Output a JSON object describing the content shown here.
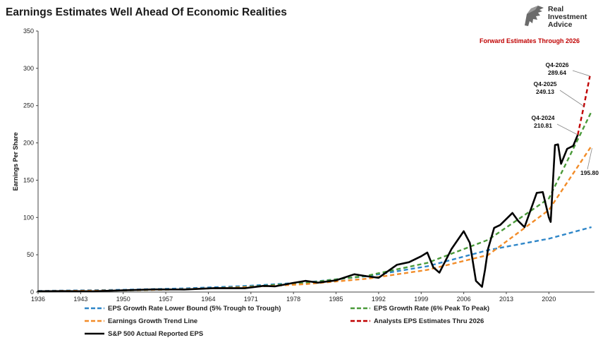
{
  "header": {
    "title": "Earnings Estimates Well Ahead Of Economic Realities",
    "logo_lines": [
      "Real",
      "Investment",
      "Advice"
    ]
  },
  "chart_data": {
    "type": "line",
    "title": "Earnings Estimates Well Ahead Of Economic Realities",
    "ylabel": "Earnings Per Share",
    "xlabel": "",
    "xlim": [
      1936,
      2027.5
    ],
    "ylim": [
      0,
      350
    ],
    "x_ticks": [
      "1936",
      "1943",
      "1950",
      "1957",
      "1964",
      "1971",
      "1978",
      "1985",
      "1992",
      "1999",
      "2006",
      "2013",
      "2020"
    ],
    "y_ticks": [
      "0",
      "50",
      "100",
      "150",
      "200",
      "250",
      "300",
      "350"
    ],
    "grid": false,
    "legend_position": "bottom",
    "series": [
      {
        "name": "EPS Growth Rate Lower Bound (5% Trough to Trough)",
        "color": "#2e86c8",
        "dash": "dashed",
        "x": [
          1936,
          1950,
          1960,
          1970,
          1980,
          1990,
          2000,
          2010,
          2020,
          2027
        ],
        "y": [
          1.5,
          3.0,
          4.9,
          8.0,
          13.0,
          21.2,
          34.5,
          56.2,
          71.5,
          87.0
        ]
      },
      {
        "name": "EPS Growth Rate (6% Peak To Peak)",
        "color": "#4a9a3a",
        "dash": "dashed",
        "x": [
          1936,
          1950,
          1960,
          1970,
          1980,
          1990,
          2000,
          2010,
          2020,
          2027
        ],
        "y": [
          0.9,
          2.1,
          3.8,
          6.8,
          12.2,
          21.8,
          39.1,
          70.0,
          125.4,
          242.0
        ]
      },
      {
        "name": "Earnings Growth Trend Line",
        "color": "#f28c28",
        "dash": "dashed",
        "x": [
          1936,
          1950,
          1960,
          1970,
          1980,
          1990,
          2000,
          2010,
          2020,
          2027
        ],
        "y": [
          1.2,
          2.3,
          3.8,
          6.4,
          10.6,
          17.8,
          29.7,
          49.7,
          110.0,
          195.8
        ]
      },
      {
        "name": "Analysts EPS Estimates Thru 2026",
        "color": "#c00000",
        "dash": "dashed",
        "x": [
          2024.75,
          2025.75,
          2026.75
        ],
        "y": [
          210.81,
          249.13,
          289.64
        ]
      },
      {
        "name": "S&P 500 Actual Reported EPS",
        "color": "#000000",
        "dash": "solid",
        "x": [
          1936,
          1940,
          1945,
          1950,
          1955,
          1960,
          1965,
          1970,
          1973,
          1975,
          1978,
          1980,
          1982,
          1985,
          1988,
          1990,
          1992,
          1995,
          1997,
          1999,
          2000,
          2001,
          2002,
          2004,
          2006,
          2007,
          2008,
          2009,
          2009.5,
          2010,
          2011,
          2012,
          2014,
          2015,
          2016,
          2018,
          2019,
          2020,
          2020.3,
          2021,
          2021.5,
          2022,
          2023,
          2024,
          2024.75
        ],
        "y": [
          1.0,
          1.2,
          1.0,
          2.3,
          3.5,
          3.4,
          5.3,
          5.1,
          8.2,
          7.7,
          12.3,
          15.0,
          12.6,
          15.7,
          23.8,
          21.3,
          19.1,
          36.5,
          40.0,
          48.0,
          53.0,
          33.0,
          26.0,
          58.0,
          81.5,
          66.0,
          14.9,
          7.0,
          30.0,
          58.0,
          86.0,
          90.0,
          106.0,
          95.0,
          87.0,
          133.0,
          134.0,
          100.0,
          94.0,
          197.0,
          198.0,
          172.0,
          192.0,
          196.0,
          210.81
        ]
      }
    ],
    "annotations": {
      "forward_label": "Forward Estimates Through 2026",
      "q4_2026": {
        "label": "Q4-2026",
        "value": "289.64"
      },
      "q4_2025": {
        "label": "Q4-2025",
        "value": "249.13"
      },
      "q4_2024": {
        "label": "Q4-2024",
        "value": "210.81"
      },
      "trend_end": {
        "value": "195.80"
      }
    }
  }
}
